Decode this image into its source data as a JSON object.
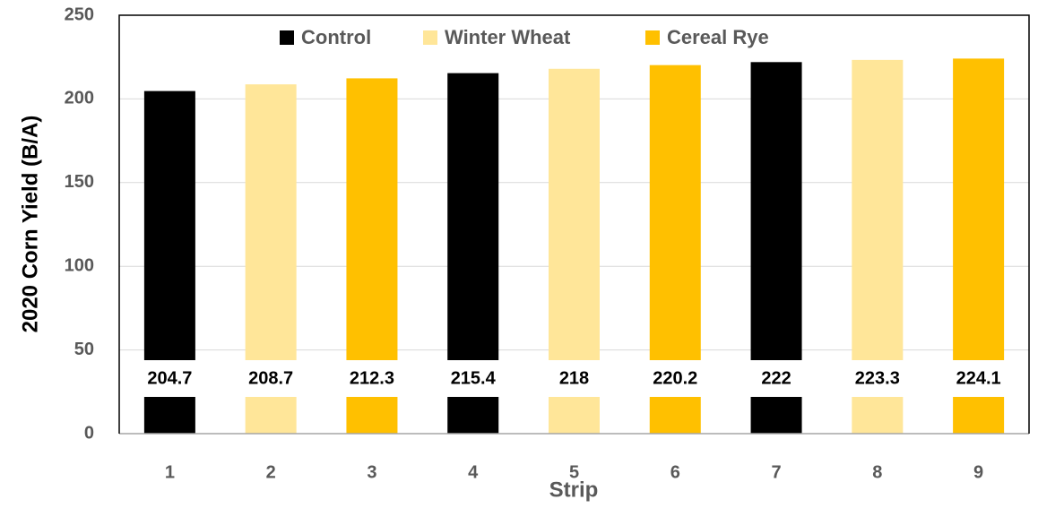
{
  "chart_data": {
    "type": "bar",
    "x_label": "Strip",
    "y_label": "2020 Corn Yield (B/A)",
    "categories": [
      "1",
      "2",
      "3",
      "4",
      "5",
      "6",
      "7",
      "8",
      "9"
    ],
    "series": [
      {
        "name": "Control",
        "color": "#000000",
        "values": [
          204.7,
          null,
          null,
          215.4,
          null,
          null,
          222,
          null,
          null
        ]
      },
      {
        "name": "Winter Wheat",
        "color": "#ffe699",
        "values": [
          null,
          208.7,
          null,
          null,
          218,
          null,
          null,
          223.3,
          null
        ]
      },
      {
        "name": "Cereal Rye",
        "color": "#ffc000",
        "values": [
          null,
          null,
          212.3,
          null,
          null,
          220.2,
          null,
          null,
          224.1
        ]
      }
    ],
    "ylim": [
      0,
      250
    ],
    "yticks": [
      0,
      50,
      100,
      150,
      200,
      250
    ],
    "grid": true,
    "legend": "top"
  }
}
